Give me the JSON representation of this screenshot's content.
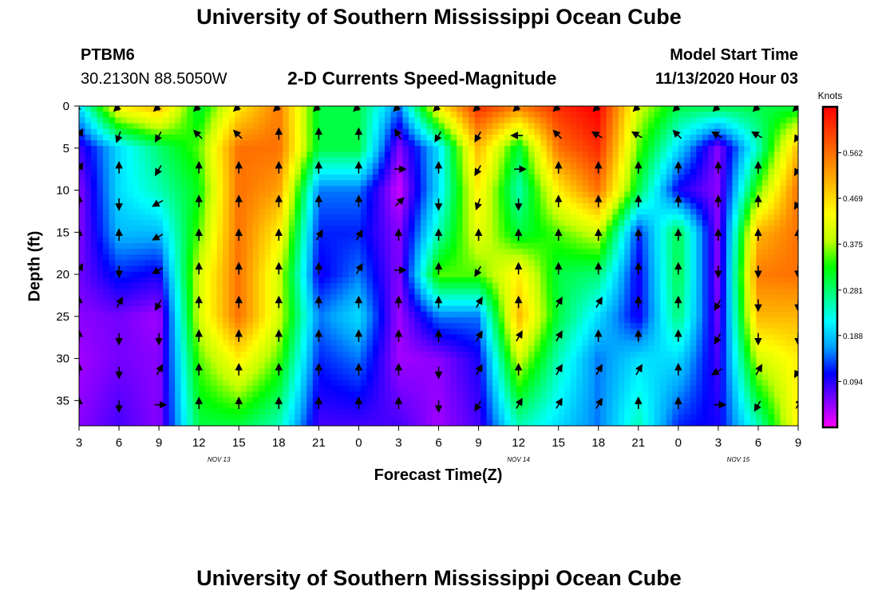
{
  "header": {
    "title": "University of Southern Mississippi Ocean Cube",
    "station_id": "PTBM6",
    "station_coords": "30.2130N 88.5050W",
    "chart_title": "2-D Currents Speed-Magnitude",
    "model_start_label": "Model Start Time",
    "model_start_value": "11/13/2020 Hour 03"
  },
  "footer": {
    "title": "University of Southern Mississippi Ocean Cube"
  },
  "chart_data": {
    "type": "heatmap",
    "title": "2-D Currents Speed-Magnitude",
    "xlabel": "Forecast Time(Z)",
    "ylabel": "Depth (ft)",
    "x_tick_labels": [
      "3",
      "6",
      "9",
      "12",
      "15",
      "18",
      "21",
      "0",
      "3",
      "6",
      "9",
      "12",
      "15",
      "18",
      "21",
      "0",
      "3",
      "6",
      "9"
    ],
    "x_hours": [
      0,
      3,
      6,
      9,
      12,
      15,
      18,
      21,
      24,
      27,
      30,
      33,
      36,
      39,
      42,
      45,
      48,
      51,
      54
    ],
    "date_labels": [
      {
        "text": "NOV 13",
        "hour": 10.5
      },
      {
        "text": "NOV 14",
        "hour": 33
      },
      {
        "text": "NOV 15",
        "hour": 49.5
      }
    ],
    "y_ticks": [
      0,
      5,
      10,
      15,
      20,
      25,
      30,
      35
    ],
    "ylim": [
      0,
      38
    ],
    "xlim_hours": [
      0,
      54
    ],
    "y_inverted": true,
    "colorbar": {
      "unit": "Knots",
      "ticks": [
        0.562,
        0.469,
        0.375,
        0.281,
        0.188,
        0.094
      ],
      "range": [
        0.0,
        0.656
      ],
      "colors": [
        "#ff00ff",
        "#8000ff",
        "#0000ff",
        "#00a0ff",
        "#00ffff",
        "#00ff80",
        "#00ff00",
        "#c0ff00",
        "#ffff00",
        "#ffc000",
        "#ff8000",
        "#ff4000",
        "#ff0000"
      ]
    },
    "speed_grid": {
      "depths_ft": [
        0,
        5,
        10,
        15,
        20,
        25,
        30,
        38
      ],
      "hours": [
        0,
        3,
        6,
        9,
        12,
        15,
        18,
        21,
        24,
        27,
        30,
        33,
        36,
        39,
        42,
        45,
        48,
        51,
        54
      ],
      "values": [
        [
          0.2,
          0.45,
          0.5,
          0.3,
          0.45,
          0.55,
          0.3,
          0.3,
          0.15,
          0.45,
          0.62,
          0.55,
          0.62,
          0.66,
          0.4,
          0.3,
          0.3,
          0.3,
          0.3
        ],
        [
          0.08,
          0.2,
          0.28,
          0.35,
          0.56,
          0.56,
          0.3,
          0.3,
          0.05,
          0.2,
          0.5,
          0.3,
          0.56,
          0.62,
          0.35,
          0.2,
          0.05,
          0.25,
          0.5
        ],
        [
          0.05,
          0.2,
          0.25,
          0.32,
          0.56,
          0.52,
          0.15,
          0.15,
          0.02,
          0.2,
          0.45,
          0.25,
          0.45,
          0.56,
          0.3,
          0.1,
          0.05,
          0.35,
          0.56
        ],
        [
          0.05,
          0.18,
          0.18,
          0.35,
          0.56,
          0.45,
          0.12,
          0.12,
          0.05,
          0.25,
          0.42,
          0.3,
          0.35,
          0.4,
          0.12,
          0.3,
          0.05,
          0.5,
          0.56
        ],
        [
          0.06,
          0.12,
          0.1,
          0.4,
          0.56,
          0.4,
          0.1,
          0.15,
          0.05,
          0.35,
          0.35,
          0.45,
          0.3,
          0.28,
          0.1,
          0.3,
          0.05,
          0.55,
          0.56
        ],
        [
          0.05,
          0.06,
          0.04,
          0.4,
          0.56,
          0.4,
          0.15,
          0.2,
          0.04,
          0.15,
          0.15,
          0.5,
          0.3,
          0.2,
          0.1,
          0.28,
          0.06,
          0.5,
          0.5
        ],
        [
          0.04,
          0.06,
          0.05,
          0.35,
          0.45,
          0.35,
          0.12,
          0.15,
          0.04,
          0.05,
          0.1,
          0.4,
          0.25,
          0.15,
          0.2,
          0.2,
          0.08,
          0.4,
          0.45
        ],
        [
          0.05,
          0.08,
          0.05,
          0.3,
          0.3,
          0.25,
          0.08,
          0.08,
          0.08,
          0.04,
          0.08,
          0.25,
          0.2,
          0.15,
          0.25,
          0.12,
          0.1,
          0.25,
          0.45
        ]
      ]
    },
    "vector_arrows": {
      "hours": [
        0,
        3,
        6,
        9,
        12,
        15,
        18,
        21,
        24,
        27,
        30,
        33,
        36,
        39,
        42,
        45,
        48,
        51,
        54
      ],
      "depths_ft": [
        0,
        3.5,
        7.5,
        11.5,
        15.5,
        19.5,
        23.5,
        27.5,
        31.5,
        35.5
      ],
      "direction_deg": [
        [
          225,
          225,
          225,
          225,
          225,
          225,
          225,
          225,
          225,
          225,
          225,
          225,
          225,
          225,
          225,
          225,
          225,
          225,
          225
        ],
        [
          30,
          200,
          210,
          315,
          315,
          0,
          0,
          0,
          330,
          210,
          210,
          270,
          315,
          300,
          300,
          315,
          300,
          300,
          210
        ],
        [
          30,
          0,
          210,
          0,
          0,
          0,
          0,
          0,
          90,
          0,
          210,
          90,
          0,
          0,
          0,
          0,
          0,
          0,
          210
        ],
        [
          0,
          180,
          240,
          0,
          0,
          0,
          0,
          0,
          45,
          180,
          200,
          180,
          0,
          0,
          0,
          0,
          0,
          0,
          210
        ],
        [
          0,
          0,
          240,
          0,
          0,
          0,
          30,
          30,
          0,
          0,
          0,
          0,
          0,
          0,
          0,
          0,
          0,
          0,
          0
        ],
        [
          30,
          180,
          240,
          0,
          0,
          0,
          0,
          30,
          90,
          0,
          210,
          0,
          0,
          0,
          0,
          0,
          180,
          180,
          180
        ],
        [
          0,
          30,
          210,
          0,
          0,
          0,
          0,
          0,
          0,
          0,
          30,
          0,
          30,
          30,
          0,
          0,
          210,
          180,
          180
        ],
        [
          0,
          180,
          180,
          0,
          0,
          0,
          0,
          0,
          0,
          0,
          30,
          30,
          30,
          0,
          0,
          0,
          210,
          180,
          180
        ],
        [
          0,
          180,
          30,
          0,
          0,
          0,
          0,
          0,
          0,
          180,
          30,
          0,
          30,
          30,
          30,
          0,
          240,
          30,
          210
        ],
        [
          0,
          180,
          90,
          0,
          0,
          0,
          0,
          0,
          0,
          180,
          210,
          30,
          30,
          30,
          0,
          0,
          90,
          210,
          30
        ]
      ]
    }
  }
}
